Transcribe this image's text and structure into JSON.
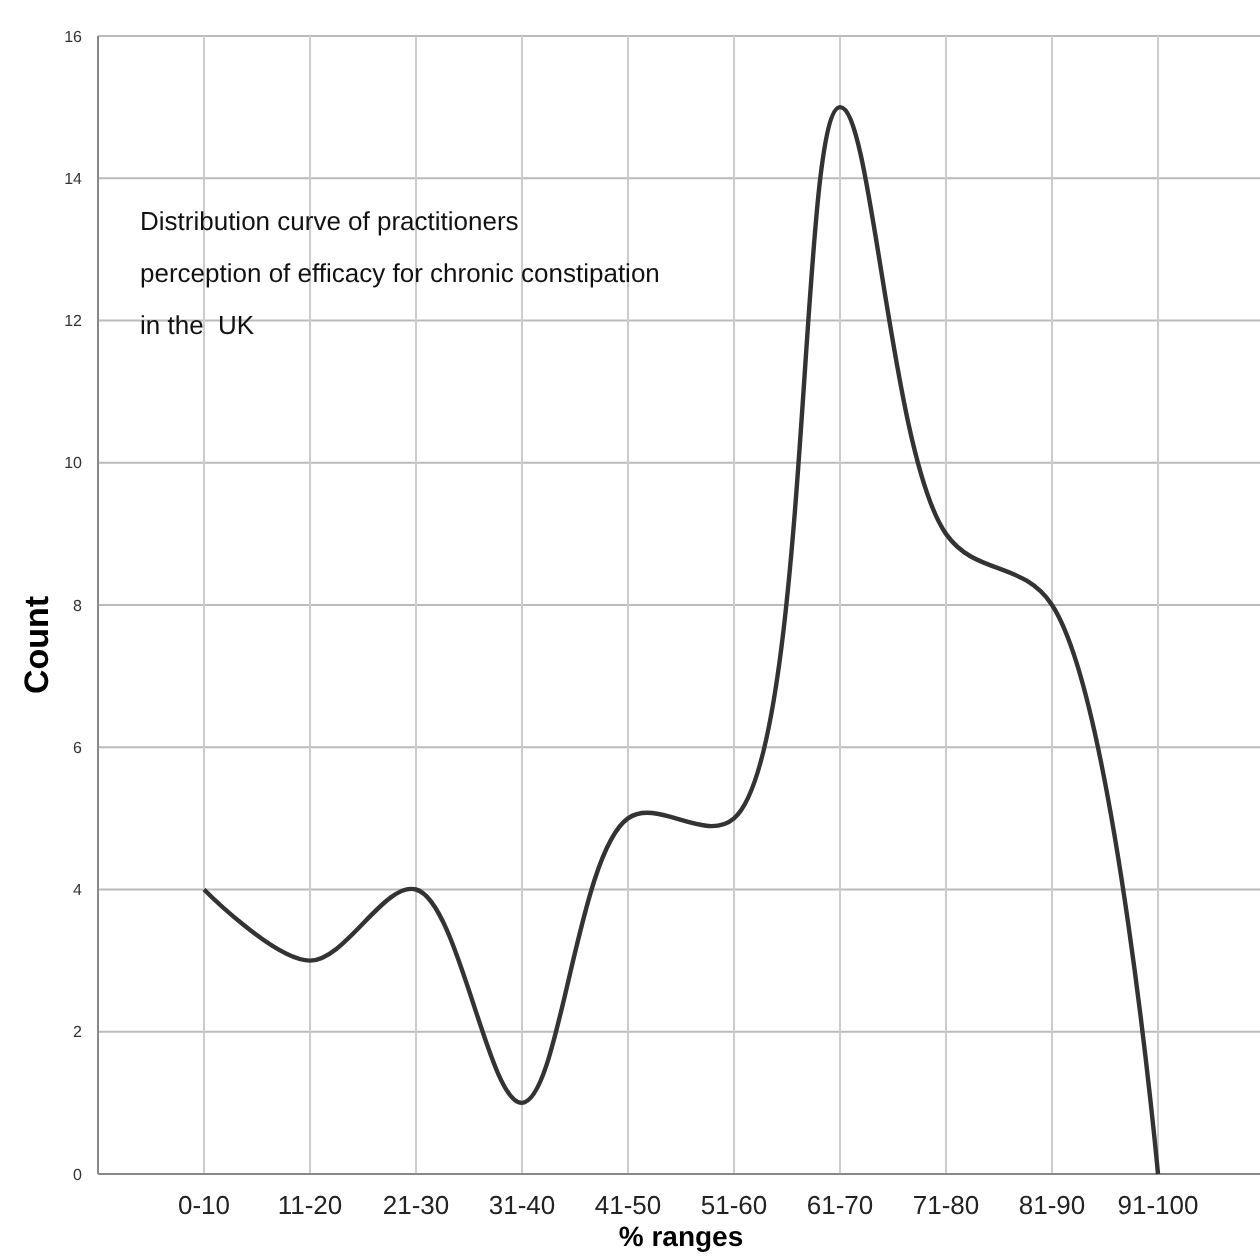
{
  "chart_data": {
    "type": "line",
    "title": "Distribution curve of practitioners\nperception of efficacy for chronic constipation\nin the  UK",
    "xlabel": "% ranges",
    "ylabel": "Count",
    "categories": [
      "0-10",
      "11-20",
      "21-30",
      "31-40",
      "41-50",
      "51-60",
      "61-70",
      "71-80",
      "81-90",
      "91-100"
    ],
    "series": [
      {
        "color": "#333333",
        "values": [
          4,
          3,
          4,
          1,
          5,
          5,
          15,
          9,
          8,
          0
        ]
      }
    ],
    "ylim": [
      0,
      16
    ],
    "yticks": [
      0,
      2,
      4,
      6,
      8,
      10,
      12,
      14,
      16
    ],
    "grid": true,
    "marker": "none",
    "line_style": "solid"
  }
}
